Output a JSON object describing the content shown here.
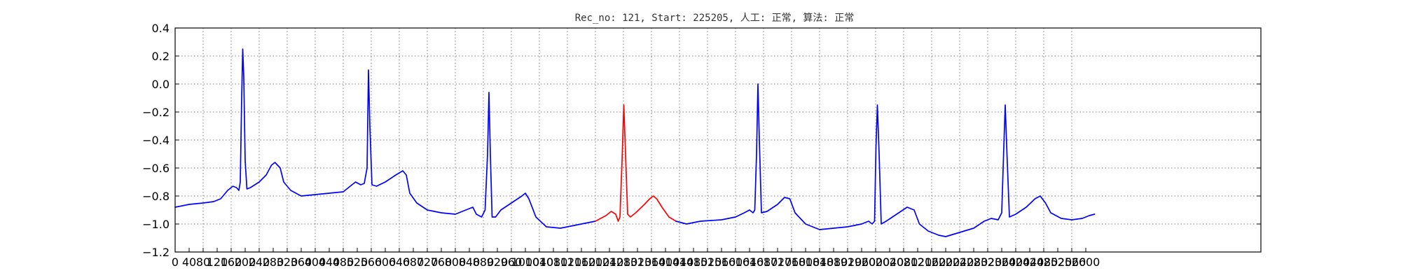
{
  "chart_data": {
    "type": "line",
    "title": "Rec_no: 121, Start: 225205, 人工: 正常, 算法: 正常",
    "xlabel": "",
    "ylabel": "",
    "xlim": [
      0,
      1560
    ],
    "ylim": [
      -1.2,
      0.4
    ],
    "grid": true,
    "x_tick_labels": [
      "0",
      "40",
      "80",
      "120",
      "160",
      "200",
      "240",
      "280",
      "320",
      "360",
      "400",
      "440",
      "480",
      "520",
      "560",
      "600",
      "640",
      "680",
      "720",
      "760",
      "800",
      "840",
      "880",
      "920",
      "960",
      "1000",
      "1040",
      "1080",
      "1120",
      "1160",
      "1200",
      "1240",
      "1280",
      "1320",
      "1360",
      "1400",
      "1440",
      "1480",
      "1520",
      "1560",
      "1600",
      "1640",
      "1680",
      "1720",
      "1760",
      "1800",
      "1840",
      "1880",
      "1920",
      "1960",
      "2000",
      "2040",
      "2080",
      "2120",
      "2160",
      "2200",
      "2240",
      "2280",
      "2320",
      "2360",
      "2400",
      "2440",
      "2480",
      "2520",
      "2560",
      "2600"
    ],
    "y_ticks": [
      0.4,
      0.2,
      0.0,
      -0.2,
      -0.4,
      -0.6,
      -0.8,
      -1.0,
      -1.2
    ],
    "y_tick_labels": [
      "0.4",
      "0.2",
      "0.0",
      "−0.2",
      "−0.4",
      "−0.6",
      "−0.8",
      "−1.0",
      "−1.2"
    ],
    "colors": {
      "normal": "#0000ff",
      "highlight": "#ff0000"
    },
    "highlight_range": [
      1200,
      1430
    ],
    "series": [
      {
        "values": [
          [
            0,
            -0.88
          ],
          [
            40,
            -0.86
          ],
          [
            80,
            -0.85
          ],
          [
            110,
            -0.84
          ],
          [
            130,
            -0.82
          ],
          [
            150,
            -0.76
          ],
          [
            165,
            -0.73
          ],
          [
            175,
            -0.74
          ],
          [
            182,
            -0.76
          ],
          [
            186,
            -0.7
          ],
          [
            190,
            -0.1
          ],
          [
            193,
            0.25
          ],
          [
            196,
            0.05
          ],
          [
            200,
            -0.55
          ],
          [
            205,
            -0.75
          ],
          [
            215,
            -0.74
          ],
          [
            240,
            -0.7
          ],
          [
            260,
            -0.65
          ],
          [
            275,
            -0.58
          ],
          [
            285,
            -0.56
          ],
          [
            300,
            -0.6
          ],
          [
            310,
            -0.7
          ],
          [
            330,
            -0.76
          ],
          [
            360,
            -0.8
          ],
          [
            400,
            -0.79
          ],
          [
            440,
            -0.78
          ],
          [
            480,
            -0.77
          ],
          [
            500,
            -0.73
          ],
          [
            515,
            -0.7
          ],
          [
            530,
            -0.72
          ],
          [
            540,
            -0.71
          ],
          [
            548,
            -0.6
          ],
          [
            552,
            0.1
          ],
          [
            556,
            -0.3
          ],
          [
            562,
            -0.72
          ],
          [
            575,
            -0.73
          ],
          [
            600,
            -0.7
          ],
          [
            630,
            -0.65
          ],
          [
            650,
            -0.62
          ],
          [
            660,
            -0.65
          ],
          [
            670,
            -0.78
          ],
          [
            690,
            -0.85
          ],
          [
            720,
            -0.9
          ],
          [
            760,
            -0.92
          ],
          [
            800,
            -0.93
          ],
          [
            830,
            -0.9
          ],
          [
            850,
            -0.88
          ],
          [
            860,
            -0.93
          ],
          [
            875,
            -0.95
          ],
          [
            885,
            -0.9
          ],
          [
            892,
            -0.5
          ],
          [
            896,
            -0.06
          ],
          [
            900,
            -0.5
          ],
          [
            905,
            -0.95
          ],
          [
            915,
            -0.95
          ],
          [
            930,
            -0.9
          ],
          [
            960,
            -0.85
          ],
          [
            990,
            -0.8
          ],
          [
            1000,
            -0.78
          ],
          [
            1010,
            -0.82
          ],
          [
            1030,
            -0.95
          ],
          [
            1060,
            -1.02
          ],
          [
            1100,
            -1.03
          ],
          [
            1140,
            -1.01
          ],
          [
            1180,
            -0.99
          ],
          [
            1200,
            -0.98
          ]
        ]
      },
      {
        "values": [
          [
            1200,
            -0.98
          ],
          [
            1215,
            -0.96
          ],
          [
            1230,
            -0.94
          ],
          [
            1245,
            -0.91
          ],
          [
            1258,
            -0.93
          ],
          [
            1265,
            -0.98
          ],
          [
            1270,
            -0.95
          ],
          [
            1276,
            -0.55
          ],
          [
            1281,
            -0.15
          ],
          [
            1286,
            -0.5
          ],
          [
            1292,
            -0.93
          ],
          [
            1300,
            -0.95
          ],
          [
            1315,
            -0.92
          ],
          [
            1340,
            -0.86
          ],
          [
            1355,
            -0.82
          ],
          [
            1365,
            -0.8
          ],
          [
            1375,
            -0.82
          ],
          [
            1390,
            -0.88
          ],
          [
            1410,
            -0.95
          ],
          [
            1430,
            -0.98
          ]
        ]
      },
      {
        "values": [
          [
            1430,
            -0.98
          ],
          [
            1460,
            -1.0
          ],
          [
            1500,
            -0.98
          ],
          [
            1560,
            -0.97
          ],
          [
            1600,
            -0.95
          ],
          [
            1625,
            -0.92
          ],
          [
            1640,
            -0.9
          ],
          [
            1650,
            -0.92
          ],
          [
            1655,
            -0.9
          ],
          [
            1660,
            -0.5
          ],
          [
            1664,
            0.0
          ],
          [
            1668,
            -0.4
          ],
          [
            1674,
            -0.92
          ],
          [
            1690,
            -0.91
          ],
          [
            1720,
            -0.86
          ],
          [
            1740,
            -0.81
          ],
          [
            1755,
            -0.82
          ],
          [
            1770,
            -0.92
          ],
          [
            1800,
            -1.0
          ],
          [
            1840,
            -1.04
          ],
          [
            1880,
            -1.03
          ],
          [
            1920,
            -1.02
          ],
          [
            1960,
            -1.0
          ],
          [
            1980,
            -0.98
          ],
          [
            1990,
            -1.0
          ],
          [
            1997,
            -0.98
          ],
          [
            2001,
            -0.45
          ],
          [
            2005,
            -0.15
          ],
          [
            2010,
            -0.5
          ],
          [
            2016,
            -1.0
          ],
          [
            2030,
            -0.98
          ],
          [
            2060,
            -0.93
          ],
          [
            2090,
            -0.88
          ],
          [
            2110,
            -0.9
          ],
          [
            2125,
            -1.0
          ],
          [
            2150,
            -1.05
          ],
          [
            2180,
            -1.08
          ],
          [
            2200,
            -1.09
          ],
          [
            2240,
            -1.06
          ],
          [
            2280,
            -1.03
          ],
          [
            2310,
            -0.98
          ],
          [
            2330,
            -0.96
          ],
          [
            2350,
            -0.97
          ],
          [
            2360,
            -0.92
          ],
          [
            2366,
            -0.45
          ],
          [
            2370,
            -0.15
          ],
          [
            2375,
            -0.5
          ],
          [
            2382,
            -0.95
          ],
          [
            2400,
            -0.93
          ],
          [
            2430,
            -0.88
          ],
          [
            2455,
            -0.82
          ],
          [
            2470,
            -0.8
          ],
          [
            2485,
            -0.85
          ],
          [
            2500,
            -0.92
          ],
          [
            2530,
            -0.96
          ],
          [
            2560,
            -0.97
          ],
          [
            2590,
            -0.96
          ],
          [
            2610,
            -0.94
          ],
          [
            2625,
            -0.93
          ]
        ]
      }
    ]
  }
}
